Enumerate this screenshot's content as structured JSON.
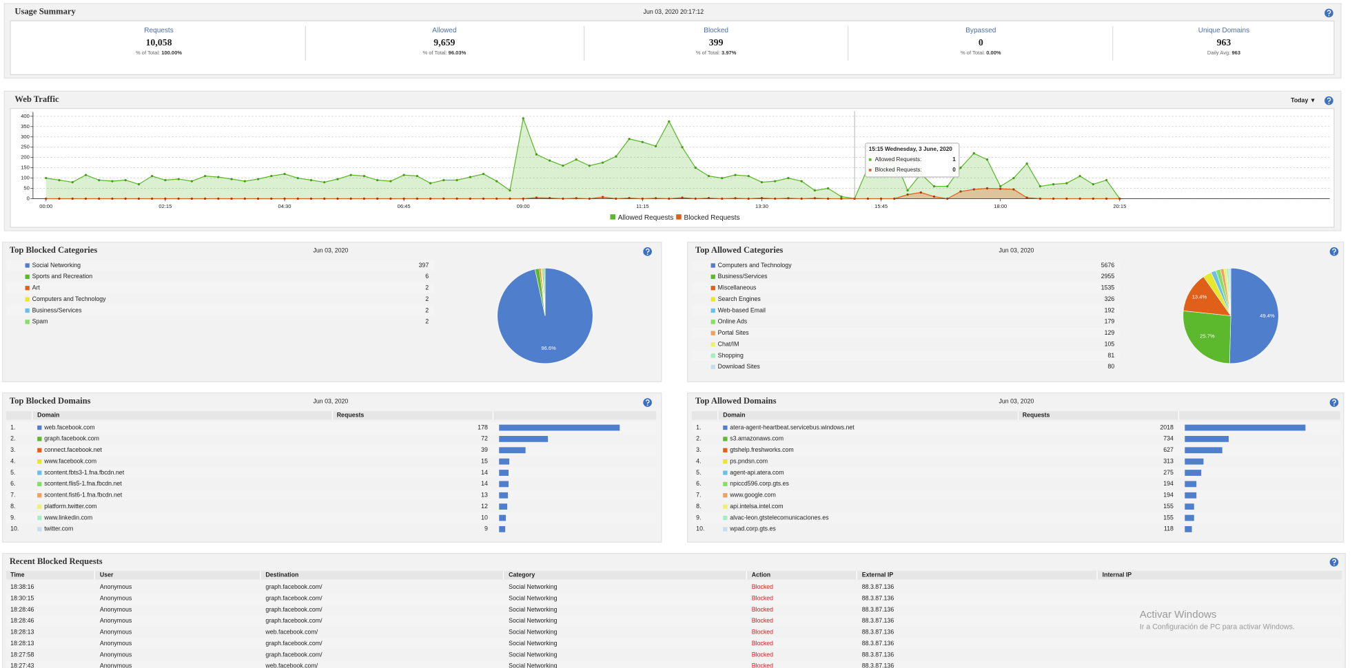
{
  "usage_summary": {
    "title": "Usage Summary",
    "timestamp": "Jun 03, 2020 20:17:12",
    "stats": [
      {
        "label": "Requests",
        "value": "10,058",
        "note_label": "% of Total: ",
        "note_value": "100.00%"
      },
      {
        "label": "Allowed",
        "value": "9,659",
        "note_label": "% of Total: ",
        "note_value": "96.03%"
      },
      {
        "label": "Blocked",
        "value": "399",
        "note_label": "% of Total: ",
        "note_value": "3.97%"
      },
      {
        "label": "Bypassed",
        "value": "0",
        "note_label": "% of Total: ",
        "note_value": "0.00%"
      },
      {
        "label": "Unique Domains",
        "value": "963",
        "note_label": "Daily Avg: ",
        "note_value": "963"
      }
    ]
  },
  "web_traffic": {
    "title": "Web Traffic",
    "range": "Today ▼",
    "chart_data": {
      "type": "line",
      "categories": [
        "00:00",
        null,
        null,
        null,
        null,
        null,
        null,
        null,
        null,
        "02:15",
        null,
        null,
        null,
        null,
        null,
        null,
        null,
        null,
        "04:30",
        null,
        null,
        null,
        null,
        null,
        null,
        null,
        null,
        "06:45",
        null,
        null,
        null,
        null,
        null,
        null,
        null,
        null,
        "09:00",
        null,
        null,
        null,
        null,
        null,
        null,
        null,
        null,
        "11:15",
        null,
        null,
        null,
        null,
        null,
        null,
        null,
        null,
        "13:30",
        null,
        null,
        null,
        null,
        null,
        null,
        null,
        null,
        "15:45",
        null,
        null,
        null,
        null,
        null,
        null,
        null,
        null,
        "18:00",
        null,
        null,
        null,
        null,
        null,
        null,
        null,
        null,
        "20:15"
      ],
      "series": [
        {
          "name": "Allowed Requests",
          "color": "#5cb82c",
          "values": [
            100,
            90,
            80,
            115,
            90,
            85,
            90,
            70,
            110,
            90,
            95,
            85,
            110,
            105,
            95,
            85,
            95,
            110,
            120,
            100,
            90,
            80,
            95,
            115,
            110,
            90,
            85,
            115,
            110,
            75,
            90,
            90,
            105,
            120,
            85,
            40,
            390,
            215,
            185,
            160,
            190,
            160,
            175,
            205,
            290,
            275,
            255,
            375,
            250,
            150,
            110,
            100,
            115,
            110,
            80,
            85,
            100,
            85,
            40,
            50,
            10,
            1,
            150,
            150,
            200,
            40,
            120,
            60,
            60,
            150,
            220,
            190,
            60,
            100,
            170,
            60,
            70,
            75,
            110,
            70,
            90,
            0
          ]
        },
        {
          "name": "Blocked Requests",
          "color": "#e0601a",
          "values": [
            0,
            0,
            0,
            0,
            0,
            0,
            0,
            0,
            0,
            0,
            0,
            0,
            0,
            0,
            0,
            0,
            0,
            0,
            0,
            0,
            0,
            0,
            0,
            0,
            0,
            0,
            0,
            0,
            0,
            0,
            0,
            0,
            0,
            0,
            0,
            0,
            0,
            5,
            3,
            0,
            2,
            0,
            8,
            0,
            3,
            0,
            2,
            0,
            5,
            0,
            3,
            0,
            2,
            0,
            3,
            0,
            2,
            0,
            2,
            0,
            0,
            0,
            0,
            0,
            0,
            20,
            30,
            10,
            0,
            35,
            45,
            50,
            48,
            45,
            5,
            0,
            0,
            0,
            0,
            0,
            0,
            0
          ]
        }
      ],
      "ylim": [
        0,
        400
      ],
      "yticks": [
        0,
        50,
        100,
        150,
        200,
        250,
        300,
        350,
        400
      ],
      "grid": true,
      "tooltip": {
        "title": "15:15 Wednesday, 3 June, 2020",
        "labels": [
          "Allowed Requests:",
          "Blocked Requests:"
        ]
      }
    }
  },
  "top_blocked_categories": {
    "title": "Top Blocked Categories",
    "date": "Jun 03, 2020",
    "chart_data": {
      "type": "pie",
      "categories": [
        "Social Networking",
        "Sports and Recreation",
        "Art",
        "Computers and Technology",
        "Business/Services",
        "Spam"
      ],
      "values": [
        397,
        6,
        2,
        2,
        2,
        2
      ],
      "colors": [
        "#4f7fcc",
        "#5cb82c",
        "#e0601a",
        "#e8e82a",
        "#6cc0e6",
        "#88dd66"
      ],
      "slice_labels": [
        "96.6%",
        null,
        null,
        null,
        null,
        null
      ]
    }
  },
  "top_allowed_categories": {
    "title": "Top Allowed Categories",
    "date": "Jun 03, 2020",
    "chart_data": {
      "type": "pie",
      "categories": [
        "Computers and Technology",
        "Business/Services",
        "Miscellaneous",
        "Search Engines",
        "Web-based Email",
        "Online Ads",
        "Portal Sites",
        "Chat/IM",
        "Shopping",
        "Download Sites"
      ],
      "values": [
        5676,
        2955,
        1535,
        326,
        192,
        179,
        129,
        105,
        81,
        80
      ],
      "colors": [
        "#4f7fcc",
        "#5cb82c",
        "#e0601a",
        "#e8e82a",
        "#6cc0e6",
        "#88dd66",
        "#f0a060",
        "#f0f070",
        "#a0f0c0",
        "#c8dcf0"
      ],
      "slice_labels": [
        "49.4%",
        "25.7%",
        "13.4%",
        null,
        null,
        null,
        null,
        null,
        null,
        null
      ]
    }
  },
  "top_blocked_domains": {
    "title": "Top Blocked Domains",
    "date": "Jun 03, 2020",
    "columns": [
      "Domain",
      "Requests"
    ],
    "ranks": [
      "1.",
      "2.",
      "3.",
      "4.",
      "5.",
      "6.",
      "7.",
      "8.",
      "9.",
      "10."
    ],
    "domains": [
      "web.facebook.com",
      "graph.facebook.com",
      "connect.facebook.net",
      "www.facebook.com",
      "scontent.fbts3-1.fna.fbcdn.net",
      "scontent.flis5-1.fna.fbcdn.net",
      "scontent.fist6-1.fna.fbcdn.net",
      "platform.twitter.com",
      "www.linkedin.com",
      "twitter.com"
    ],
    "requests": [
      178,
      72,
      39,
      15,
      14,
      14,
      13,
      12,
      10,
      9
    ],
    "bar_color": "#4f7fcc"
  },
  "top_allowed_domains": {
    "title": "Top Allowed Domains",
    "date": "Jun 03, 2020",
    "columns": [
      "Domain",
      "Requests"
    ],
    "ranks": [
      "1.",
      "2.",
      "3.",
      "4.",
      "5.",
      "6.",
      "7.",
      "8.",
      "9.",
      "10."
    ],
    "domains": [
      "atera-agent-heartbeat.servicebus.windows.net",
      "s3.amazonaws.com",
      "gtshelp.freshworks.com",
      "ps.pndsn.com",
      "agent-api.atera.com",
      "npiccd596.corp.gts.es",
      "www.google.com",
      "api.intelsa.intel.com",
      "alvac-leon.gtstelecomunicaciones.es",
      "wpad.corp.gts.es"
    ],
    "requests": [
      2018,
      734,
      627,
      313,
      275,
      194,
      194,
      155,
      155,
      118
    ],
    "bar_color": "#4f7fcc"
  },
  "recent_blocked_requests": {
    "title": "Recent Blocked Requests",
    "columns": [
      "Time",
      "User",
      "Destination",
      "Category",
      "Action",
      "External IP",
      "Internal IP"
    ],
    "rows": [
      [
        "18:38:16",
        "Anonymous",
        "graph.facebook.com/",
        "Social Networking",
        "Blocked",
        "88.3.87.136"
      ],
      [
        "18:30:15",
        "Anonymous",
        "graph.facebook.com/",
        "Social Networking",
        "Blocked",
        "88.3.87.136"
      ],
      [
        "18:28:46",
        "Anonymous",
        "graph.facebook.com/",
        "Social Networking",
        "Blocked",
        "88.3.87.136"
      ],
      [
        "18:28:46",
        "Anonymous",
        "graph.facebook.com/",
        "Social Networking",
        "Blocked",
        "88.3.87.136"
      ],
      [
        "18:28:13",
        "Anonymous",
        "web.facebook.com/",
        "Social Networking",
        "Blocked",
        "88.3.87.136"
      ],
      [
        "18:28:13",
        "Anonymous",
        "graph.facebook.com/",
        "Social Networking",
        "Blocked",
        "88.3.87.136"
      ],
      [
        "18:27:58",
        "Anonymous",
        "graph.facebook.com/",
        "Social Networking",
        "Blocked",
        "88.3.87.136"
      ],
      [
        "18:27:43",
        "Anonymous",
        "web.facebook.com/",
        "Social Networking",
        "Blocked",
        "88.3.87.136"
      ]
    ]
  },
  "watermark": {
    "title": "Activar Windows",
    "subtitle": "Ir a Configuración de PC para activar Windows."
  }
}
